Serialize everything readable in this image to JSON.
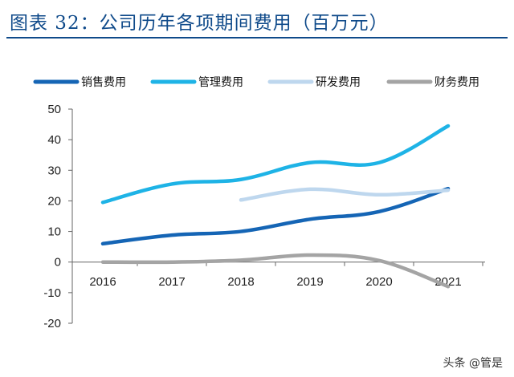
{
  "title": "图表 32：公司历年各项期间费用（百万元）",
  "watermark": "头条 @管是",
  "chart_data": {
    "type": "line",
    "categories": [
      "2016",
      "2017",
      "2018",
      "2019",
      "2020",
      "2021"
    ],
    "ylim": [
      -20,
      50
    ],
    "yticks": [
      50,
      40,
      30,
      20,
      10,
      0,
      -10,
      -20
    ],
    "xlabel": "",
    "ylabel": "",
    "grid": false,
    "legend_position": "top",
    "series": [
      {
        "name": "销售费用",
        "color": "#1565b5",
        "values": [
          6.0,
          8.8,
          10.0,
          14.0,
          16.5,
          24.0
        ]
      },
      {
        "name": "管理费用",
        "color": "#1eb3e6",
        "values": [
          19.5,
          25.5,
          27.0,
          32.5,
          32.5,
          44.5
        ]
      },
      {
        "name": "研发费用",
        "color": "#bed7ee",
        "values": [
          null,
          null,
          20.3,
          23.8,
          22.0,
          23.5
        ]
      },
      {
        "name": "财务费用",
        "color": "#a4a4a4",
        "values": [
          0.0,
          0.0,
          0.6,
          2.3,
          0.5,
          -8.0
        ]
      }
    ]
  }
}
